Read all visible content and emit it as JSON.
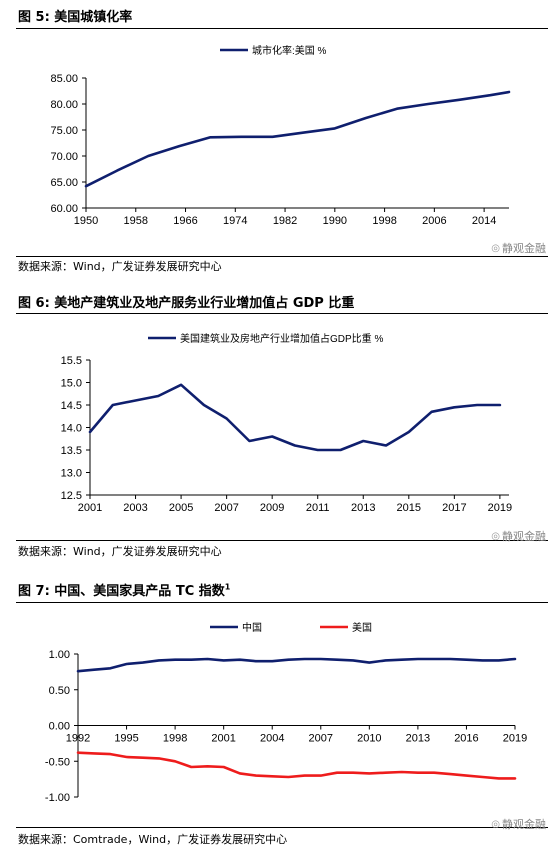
{
  "figures": [
    {
      "title": "图 5:  美国城镇化率",
      "source": "数据来源：Wind，广发证券发展研究中心"
    },
    {
      "title": "图 6:  美地产建筑业及地产服务业行业增加值占 GDP 比重",
      "source": "数据来源：Wind，广发证券发展研究中心"
    },
    {
      "title_main": "图 7:  中国、美国家具产品 TC 指数",
      "title_note": "1",
      "source": "数据来源：Comtrade，Wind，广发证券发展研究中心"
    }
  ],
  "watermark": {
    "text": "静观金融",
    "icon": "wechat-icon"
  },
  "colors": {
    "navy": "#0F1F6E",
    "red": "#EE1C1C",
    "axis": "#000000"
  },
  "chart_data": [
    {
      "type": "line",
      "title": "",
      "xlabel": "",
      "ylabel": "",
      "xlim": [
        1950,
        2018
      ],
      "ylim": [
        60,
        85
      ],
      "xticks": [
        "1950",
        "1958",
        "1966",
        "1974",
        "1982",
        "1990",
        "1998",
        "2006",
        "2014"
      ],
      "yticks": [
        "60.00",
        "65.00",
        "70.00",
        "75.00",
        "80.00",
        "85.00"
      ],
      "legend_position": "top-center",
      "grid": false,
      "series": [
        {
          "name": "城市化率:美国 %",
          "color": "#0F1F6E",
          "x": [
            1950,
            1955,
            1960,
            1965,
            1970,
            1975,
            1980,
            1985,
            1990,
            1995,
            2000,
            2005,
            2010,
            2015,
            2018
          ],
          "y": [
            64.2,
            67.2,
            70.0,
            71.9,
            73.6,
            73.7,
            73.7,
            74.5,
            75.3,
            77.3,
            79.1,
            80.0,
            80.8,
            81.7,
            82.3
          ]
        }
      ]
    },
    {
      "type": "line",
      "title": "",
      "xlabel": "",
      "ylabel": "",
      "xlim": [
        2001,
        2019.4
      ],
      "ylim": [
        12.5,
        15.5
      ],
      "xticks": [
        "2001",
        "2003",
        "2005",
        "2007",
        "2009",
        "2011",
        "2013",
        "2015",
        "2017",
        "2019"
      ],
      "yticks": [
        "12.5",
        "13.0",
        "13.5",
        "14.0",
        "14.5",
        "15.0",
        "15.5"
      ],
      "legend_position": "top-center",
      "grid": false,
      "series": [
        {
          "name": "美国建筑业及房地产行业增加值占GDP比重 %",
          "color": "#0F1F6E",
          "x": [
            2001,
            2002,
            2003,
            2004,
            2005,
            2006,
            2007,
            2008,
            2009,
            2010,
            2011,
            2012,
            2013,
            2014,
            2015,
            2016,
            2017,
            2018,
            2019
          ],
          "y": [
            13.9,
            14.5,
            14.6,
            14.7,
            14.95,
            14.5,
            14.2,
            13.7,
            13.8,
            13.6,
            13.5,
            13.5,
            13.7,
            13.6,
            13.9,
            14.35,
            14.45,
            14.5,
            14.5
          ]
        }
      ]
    },
    {
      "type": "line",
      "title": "",
      "xlabel": "",
      "ylabel": "",
      "xlim": [
        1992,
        2019
      ],
      "ylim": [
        -1.0,
        1.0
      ],
      "xticks": [
        "1992",
        "1995",
        "1998",
        "2001",
        "2004",
        "2007",
        "2010",
        "2013",
        "2016",
        "2019"
      ],
      "yticks": [
        "-1.00",
        "-0.50",
        "0.00",
        "0.50",
        "1.00"
      ],
      "legend_position": "top-center",
      "grid": false,
      "series": [
        {
          "name": "中国",
          "color": "#0F1F6E",
          "x": [
            1992,
            1993,
            1994,
            1995,
            1996,
            1997,
            1998,
            1999,
            2000,
            2001,
            2002,
            2003,
            2004,
            2005,
            2006,
            2007,
            2008,
            2009,
            2010,
            2011,
            2012,
            2013,
            2014,
            2015,
            2016,
            2017,
            2018,
            2019
          ],
          "y": [
            0.76,
            0.78,
            0.8,
            0.86,
            0.88,
            0.91,
            0.92,
            0.92,
            0.93,
            0.91,
            0.92,
            0.9,
            0.9,
            0.92,
            0.93,
            0.93,
            0.92,
            0.91,
            0.88,
            0.91,
            0.92,
            0.93,
            0.93,
            0.93,
            0.92,
            0.91,
            0.91,
            0.93
          ]
        },
        {
          "name": "美国",
          "color": "#EE1C1C",
          "x": [
            1992,
            1993,
            1994,
            1995,
            1996,
            1997,
            1998,
            1999,
            2000,
            2001,
            2002,
            2003,
            2004,
            2005,
            2006,
            2007,
            2008,
            2009,
            2010,
            2011,
            2012,
            2013,
            2014,
            2015,
            2016,
            2017,
            2018,
            2019
          ],
          "y": [
            -0.38,
            -0.39,
            -0.4,
            -0.44,
            -0.45,
            -0.46,
            -0.5,
            -0.58,
            -0.57,
            -0.58,
            -0.67,
            -0.7,
            -0.71,
            -0.72,
            -0.7,
            -0.7,
            -0.66,
            -0.66,
            -0.67,
            -0.66,
            -0.65,
            -0.66,
            -0.66,
            -0.68,
            -0.7,
            -0.72,
            -0.74,
            -0.74
          ]
        }
      ]
    }
  ]
}
